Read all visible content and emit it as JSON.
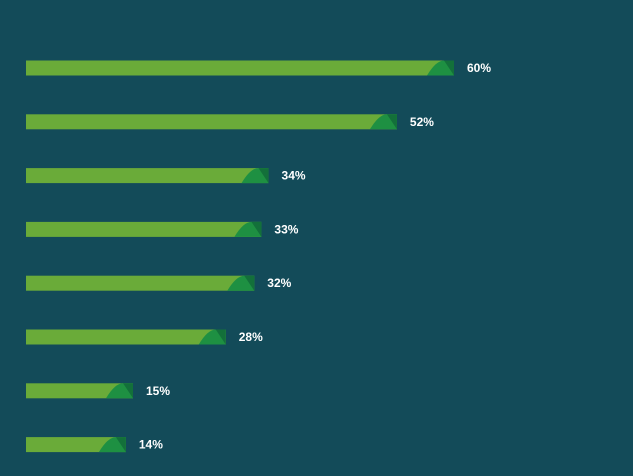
{
  "chart_data": {
    "type": "bar",
    "orientation": "horizontal",
    "title": "",
    "xlabel": "",
    "ylabel": "",
    "xlim": [
      0,
      60
    ],
    "grid": false,
    "legend": "none",
    "values": [
      60,
      52,
      34,
      33,
      32,
      28,
      15,
      14
    ],
    "value_labels": [
      "60%",
      "52%",
      "34%",
      "33%",
      "32%",
      "28%",
      "15%",
      "14%"
    ]
  },
  "colors": {
    "background": "#134b59",
    "bar": "#6aab39",
    "bar_tip": "#1e9042",
    "bar_tip_dark": "#13703a",
    "label": "#ffffff"
  }
}
